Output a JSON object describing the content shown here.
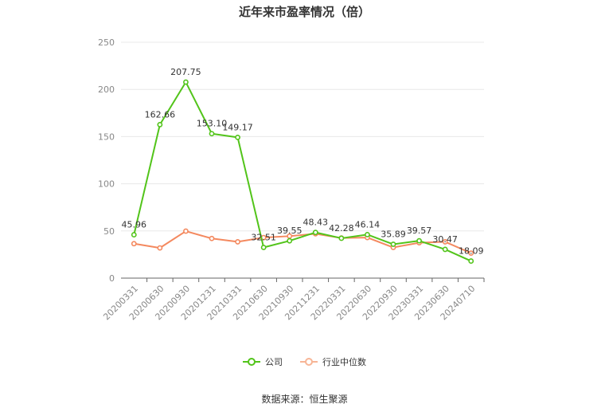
{
  "chart_data": {
    "type": "line",
    "title": "近年来市盈率情况（倍）",
    "categories": [
      "20200331",
      "20200630",
      "20200930",
      "20201231",
      "20210331",
      "20210630",
      "20210930",
      "20211231",
      "20220331",
      "20220630",
      "20220930",
      "20230331",
      "20230630",
      "20240710"
    ],
    "series": [
      {
        "name": "公司",
        "color": "#52c41a",
        "values": [
          45.96,
          162.66,
          207.75,
          153.1,
          149.17,
          32.51,
          39.55,
          48.43,
          42.28,
          46.14,
          35.89,
          39.57,
          30.47,
          18.09
        ],
        "labels": [
          "45.96",
          "162.66",
          "207.75",
          "153.10",
          "149.17",
          "32.51",
          "39.55",
          "48.43",
          "42.28",
          "46.14",
          "35.89",
          "39.57",
          "30.47",
          "18.09"
        ]
      },
      {
        "name": "行业中位数",
        "color": "#f4895f",
        "values": [
          36.5,
          32.0,
          49.8,
          42.0,
          38.5,
          43.0,
          44.5,
          47.0,
          42.5,
          43.0,
          32.5,
          37.5,
          38.5,
          26.5
        ]
      }
    ],
    "yticks": [
      0,
      50,
      100,
      150,
      200,
      250
    ],
    "ylim": [
      0,
      250
    ],
    "grid": true,
    "legend_position": "bottom"
  },
  "source": "数据来源：恒生聚源"
}
